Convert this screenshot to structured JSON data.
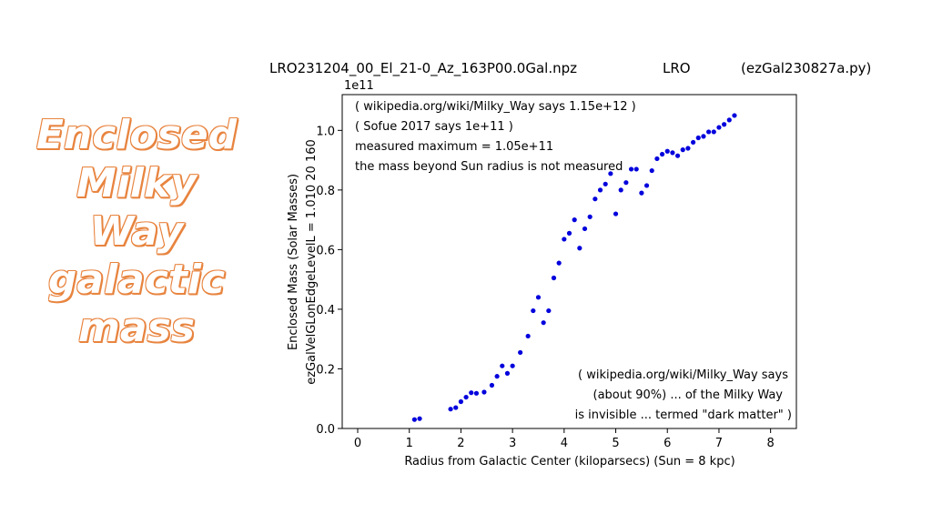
{
  "slide": {
    "title_lines": [
      "Enclosed",
      "Milky",
      "Way",
      "galactic",
      "mass"
    ],
    "title_color": "#e8843f"
  },
  "chart_data": {
    "type": "scatter",
    "header": {
      "file": "LRO231204_00_El_21-0_Az_163P00.0Gal.npz",
      "site": "LRO",
      "script": "(ezGal230827a.py)"
    },
    "xlabel": "Radius from Galactic Center (kiloparsecs)  (Sun = 8 kpc)",
    "ylabel_line1": "Enclosed Mass (Solar Masses)",
    "ylabel_line2": "ezGalVelGLonEdgeLevelL = 1.010  20  160",
    "y_offset_label": "1e11",
    "xlim": [
      -0.3,
      8.5
    ],
    "ylim": [
      0,
      1.12
    ],
    "x_ticks": [
      0,
      1,
      2,
      3,
      4,
      5,
      6,
      7,
      8
    ],
    "y_ticks": [
      0.0,
      0.2,
      0.4,
      0.6,
      0.8,
      1.0
    ],
    "x_tick_labels": [
      "0",
      "1",
      "2",
      "3",
      "4",
      "5",
      "6",
      "7",
      "8"
    ],
    "y_tick_labels": [
      "0.0",
      "0.2",
      "0.4",
      "0.6",
      "0.8",
      "1.0"
    ],
    "grid": false,
    "marker_color": "#0000dd",
    "notes_top": [
      "( wikipedia.org/wiki/Milky_Way says 1.15e+12 )",
      "( Sofue 2017 says 1e+11 )",
      "measured maximum = 1.05e+11",
      "the mass beyond Sun radius is not measured"
    ],
    "notes_bottom": [
      "( wikipedia.org/wiki/Milky_Way says",
      "(about 90%) ... of the Milky Way",
      "is invisible ... termed \"dark matter\" )"
    ],
    "series": [
      {
        "points": [
          [
            1.1,
            0.03
          ],
          [
            1.2,
            0.033
          ],
          [
            1.8,
            0.065
          ],
          [
            1.9,
            0.07
          ],
          [
            2.0,
            0.09
          ],
          [
            2.1,
            0.105
          ],
          [
            2.2,
            0.12
          ],
          [
            2.3,
            0.118
          ],
          [
            2.45,
            0.122
          ],
          [
            2.6,
            0.145
          ],
          [
            2.7,
            0.175
          ],
          [
            2.8,
            0.21
          ],
          [
            2.9,
            0.185
          ],
          [
            3.0,
            0.21
          ],
          [
            3.15,
            0.255
          ],
          [
            3.3,
            0.31
          ],
          [
            3.4,
            0.395
          ],
          [
            3.5,
            0.44
          ],
          [
            3.6,
            0.355
          ],
          [
            3.7,
            0.395
          ],
          [
            3.8,
            0.505
          ],
          [
            3.9,
            0.555
          ],
          [
            4.0,
            0.635
          ],
          [
            4.1,
            0.655
          ],
          [
            4.2,
            0.7
          ],
          [
            4.3,
            0.605
          ],
          [
            4.4,
            0.67
          ],
          [
            4.5,
            0.71
          ],
          [
            4.6,
            0.77
          ],
          [
            4.7,
            0.8
          ],
          [
            4.8,
            0.82
          ],
          [
            4.9,
            0.855
          ],
          [
            5.0,
            0.72
          ],
          [
            5.1,
            0.8
          ],
          [
            5.2,
            0.825
          ],
          [
            5.3,
            0.87
          ],
          [
            5.4,
            0.87
          ],
          [
            5.5,
            0.79
          ],
          [
            5.6,
            0.815
          ],
          [
            5.7,
            0.865
          ],
          [
            5.8,
            0.905
          ],
          [
            5.9,
            0.92
          ],
          [
            6.0,
            0.93
          ],
          [
            6.1,
            0.925
          ],
          [
            6.2,
            0.915
          ],
          [
            6.3,
            0.935
          ],
          [
            6.4,
            0.94
          ],
          [
            6.5,
            0.96
          ],
          [
            6.6,
            0.975
          ],
          [
            6.7,
            0.98
          ],
          [
            6.8,
            0.995
          ],
          [
            6.9,
            0.995
          ],
          [
            7.0,
            1.01
          ],
          [
            7.1,
            1.02
          ],
          [
            7.2,
            1.035
          ],
          [
            7.3,
            1.05
          ]
        ]
      }
    ]
  }
}
